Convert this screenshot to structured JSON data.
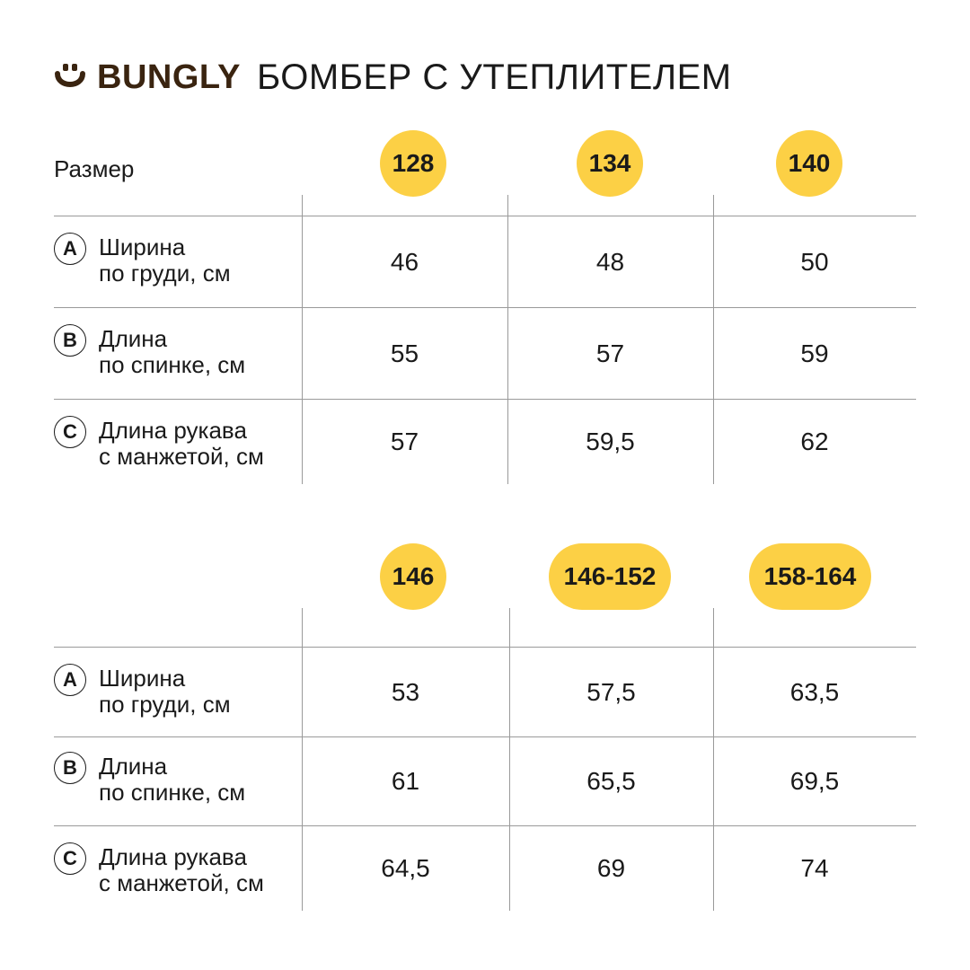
{
  "header": {
    "logo_icon": "bungly-smile-icon",
    "brand": "BUNGLY",
    "title": "БОМБЕР С УТЕПЛИТЕЛЕМ",
    "brand_color": "#3a2410",
    "accent_color": "#fcd045"
  },
  "tables": [
    {
      "size_label": "Размер",
      "sizes": [
        "128",
        "134",
        "140"
      ],
      "rows": [
        {
          "badge": "A",
          "label_line1": "Ширина",
          "label_line2": "по груди, см",
          "values": [
            "46",
            "48",
            "50"
          ]
        },
        {
          "badge": "B",
          "label_line1": "Длина",
          "label_line2": "по спинке, см",
          "values": [
            "55",
            "57",
            "59"
          ]
        },
        {
          "badge": "C",
          "label_line1": "Длина рукава",
          "label_line2": "с манжетой, см",
          "values": [
            "57",
            "59,5",
            "62"
          ]
        }
      ]
    },
    {
      "size_label": "",
      "sizes": [
        "146",
        "146-152",
        "158-164"
      ],
      "rows": [
        {
          "badge": "A",
          "label_line1": "Ширина",
          "label_line2": "по груди, см",
          "values": [
            "53",
            "57,5",
            "63,5"
          ]
        },
        {
          "badge": "B",
          "label_line1": "Длина",
          "label_line2": "по спинке, см",
          "values": [
            "61",
            "65,5",
            "69,5"
          ]
        },
        {
          "badge": "C",
          "label_line1": "Длина рукава",
          "label_line2": "с манжетой, см",
          "values": [
            "64,5",
            "69",
            "74"
          ]
        }
      ]
    }
  ]
}
